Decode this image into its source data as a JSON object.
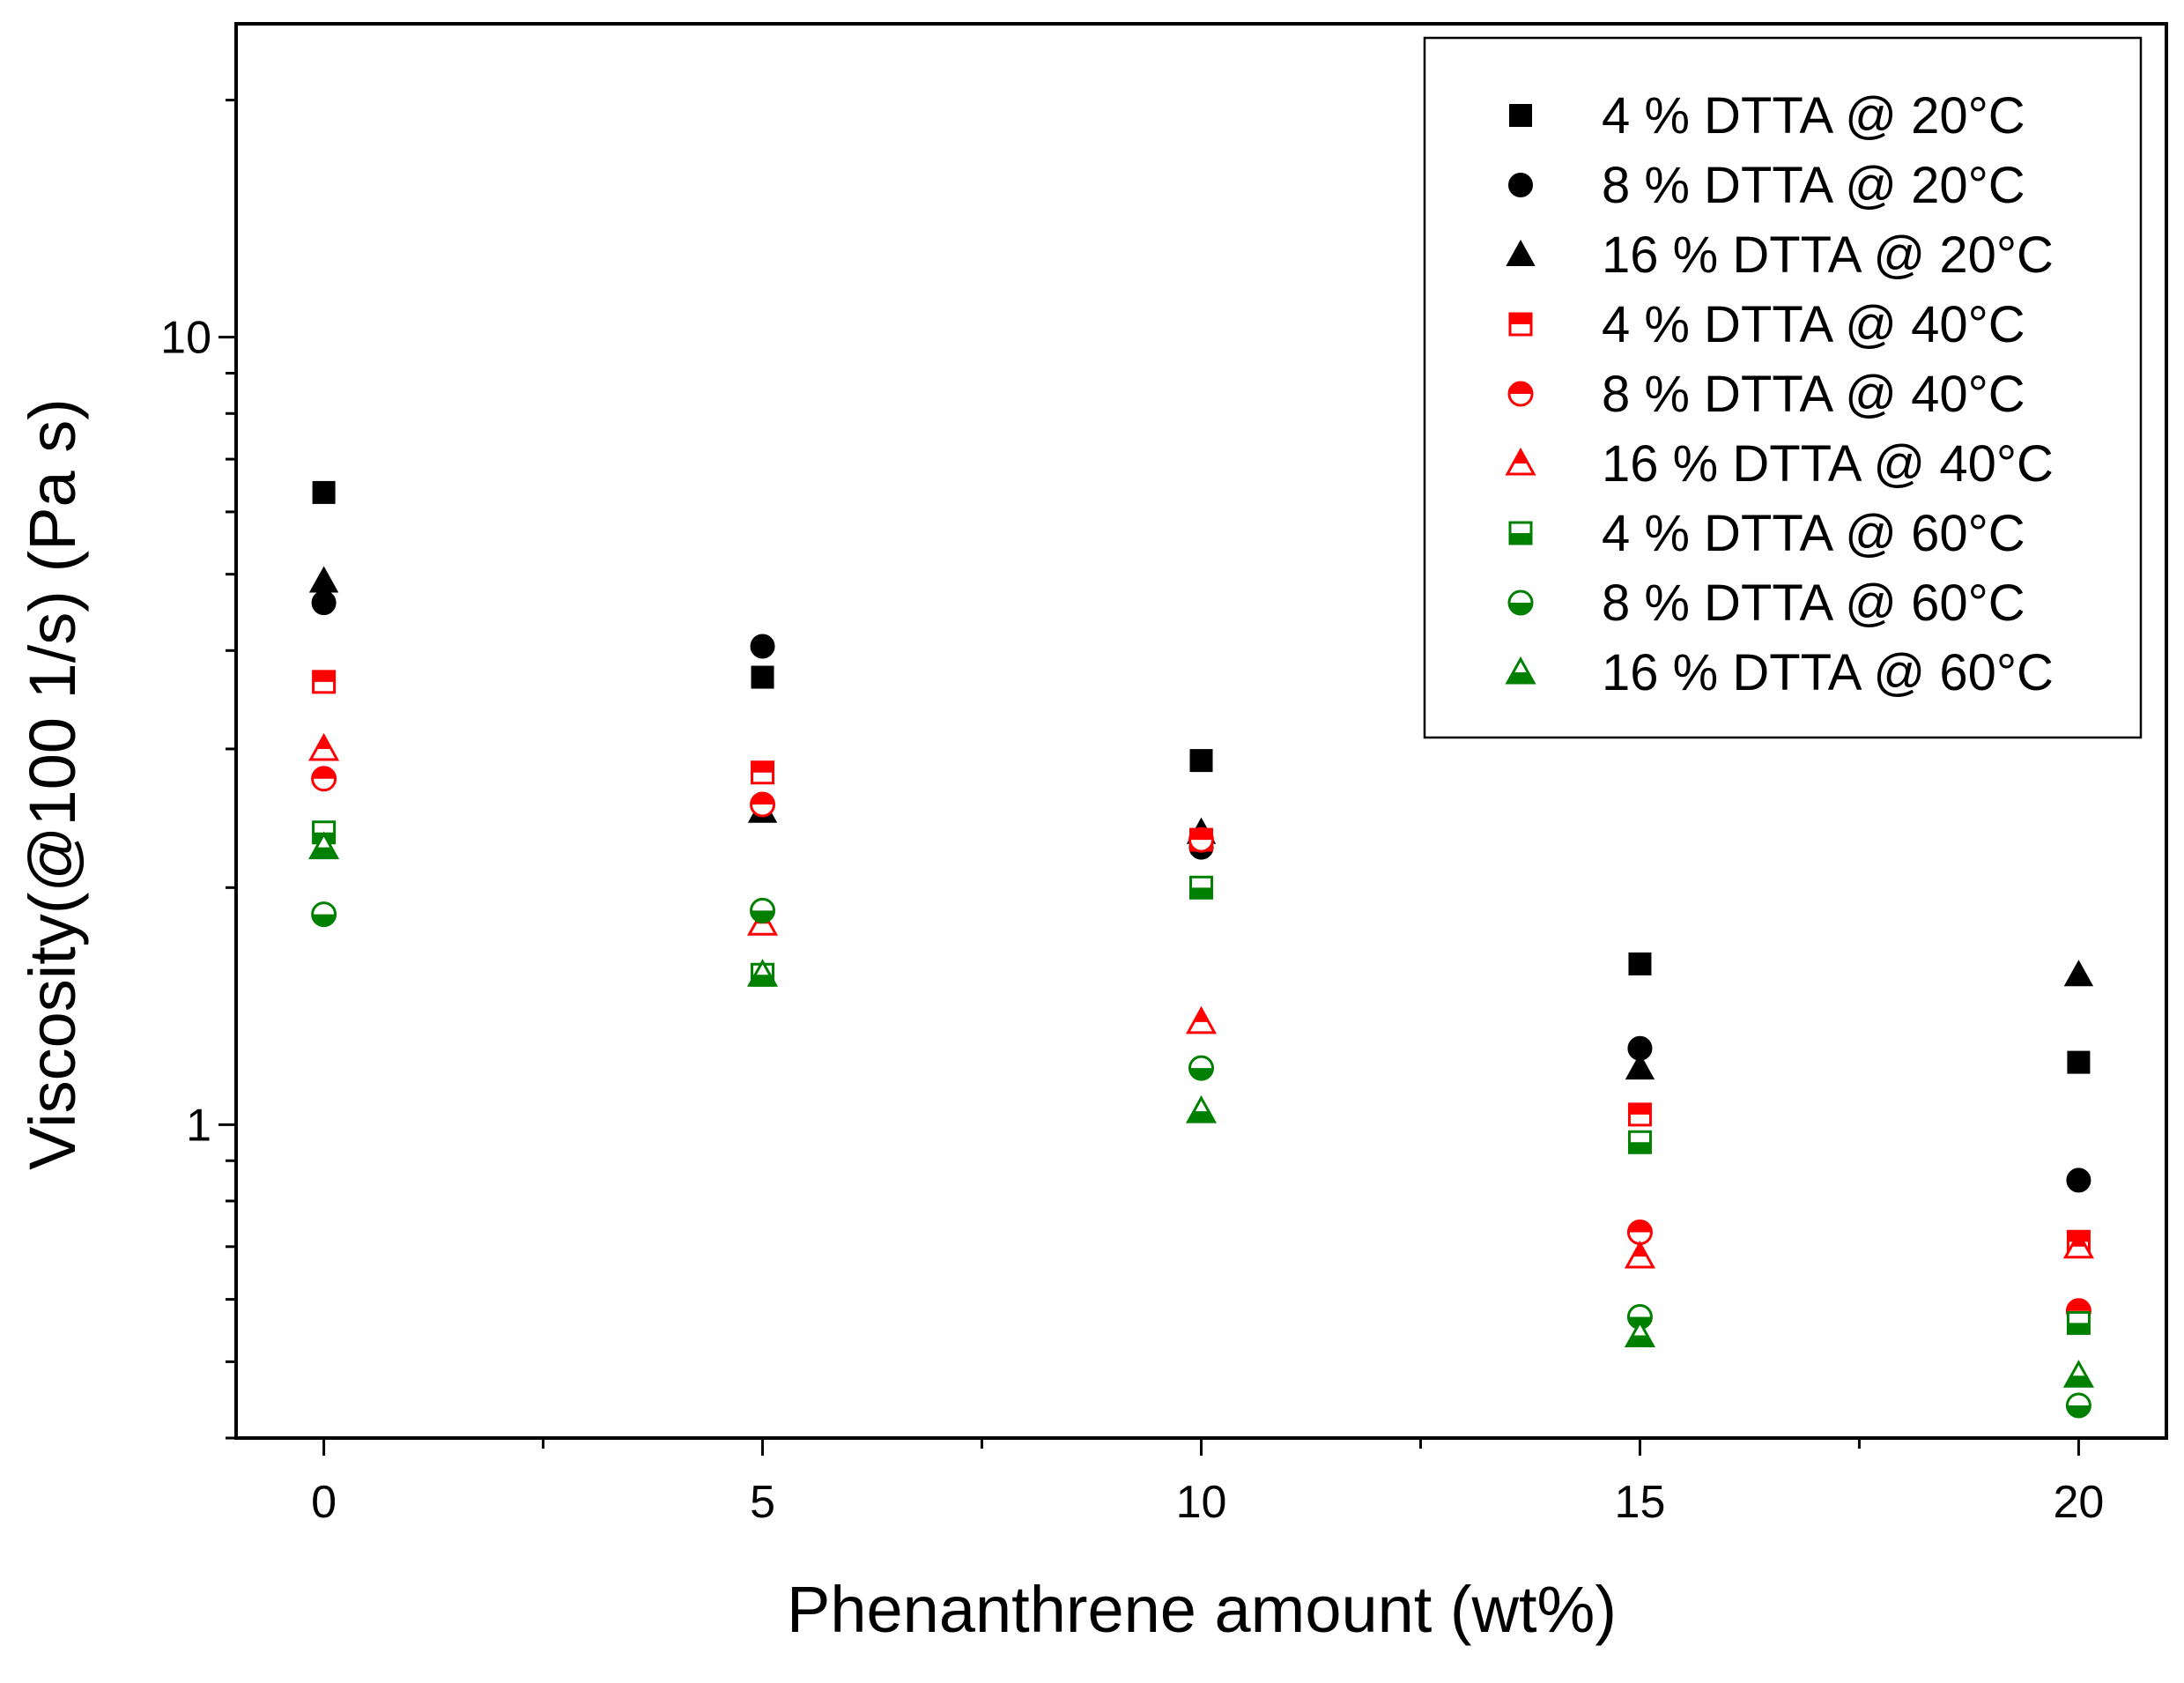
{
  "chart_data": {
    "type": "scatter",
    "title": "",
    "xlabel": "Phenanthrene amount (wt%)",
    "ylabel": "Viscosity(@100 1/s) (Pa s)",
    "xlim": [
      -1,
      21
    ],
    "ylim": [
      0.4,
      25
    ],
    "yscale": "log",
    "x_ticks": [
      0,
      5,
      10,
      15,
      20
    ],
    "x_tick_labels": [
      "0",
      "5",
      "10",
      "15",
      "20"
    ],
    "y_ticks": [
      1,
      10
    ],
    "y_tick_labels": [
      "1",
      "10"
    ],
    "grid": false,
    "legend_position": "top-right",
    "x": [
      0,
      5,
      10,
      15,
      20
    ],
    "series": [
      {
        "name": "4 % DTTA @ 20°C",
        "color": "#000000",
        "marker": "square",
        "fill": "full",
        "values": [
          6.35,
          3.7,
          2.9,
          1.6,
          1.2
        ]
      },
      {
        "name": "8 % DTTA @ 20°C",
        "color": "#000000",
        "marker": "circle",
        "fill": "full",
        "values": [
          4.6,
          4.05,
          2.25,
          1.25,
          0.85
        ]
      },
      {
        "name": "16 % DTTA @ 20°C",
        "color": "#000000",
        "marker": "triangle",
        "fill": "full",
        "values": [
          4.9,
          2.5,
          2.35,
          1.18,
          1.55
        ]
      },
      {
        "name": "4 % DTTA @ 40°C",
        "color": "#ff0000",
        "marker": "square",
        "fill": "top",
        "values": [
          3.65,
          2.8,
          2.3,
          1.03,
          0.71
        ]
      },
      {
        "name": "8 % DTTA @ 40°C",
        "color": "#ff0000",
        "marker": "circle",
        "fill": "top",
        "values": [
          2.75,
          2.55,
          2.3,
          0.73,
          0.58
        ]
      },
      {
        "name": "16 % DTTA @ 40°C",
        "color": "#ff0000",
        "marker": "triangle",
        "fill": "top",
        "values": [
          3.0,
          1.8,
          1.35,
          0.68,
          0.7
        ]
      },
      {
        "name": "4 % DTTA @ 60°C",
        "color": "#008000",
        "marker": "square",
        "fill": "bottom",
        "values": [
          2.35,
          1.55,
          2.0,
          0.95,
          0.56
        ]
      },
      {
        "name": "8 % DTTA @ 60°C",
        "color": "#008000",
        "marker": "circle",
        "fill": "bottom",
        "values": [
          1.85,
          1.87,
          1.18,
          0.57,
          0.44
        ]
      },
      {
        "name": "16 % DTTA @ 60°C",
        "color": "#008000",
        "marker": "triangle",
        "fill": "bottom",
        "values": [
          2.25,
          1.55,
          1.04,
          0.54,
          0.48
        ]
      }
    ]
  }
}
